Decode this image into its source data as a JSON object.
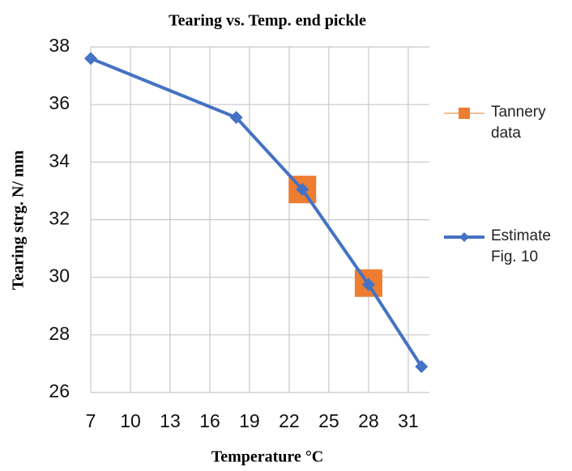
{
  "chart_data": {
    "type": "line",
    "title": "Tearing vs. Temp. end pickle",
    "xlabel": "Temperature °C",
    "ylabel": "Tearing strg. N/ mm",
    "series": [
      {
        "name": "Tannery data",
        "color": "#ED7D31",
        "marker": "square",
        "line": false,
        "x": [
          23,
          28
        ],
        "values": [
          33.05,
          29.8
        ]
      },
      {
        "name": "Estimate Fig. 10",
        "color": "#4472C4",
        "marker": "diamond",
        "line": true,
        "x": [
          7,
          18,
          23,
          28,
          32
        ],
        "values": [
          37.6,
          35.55,
          33.05,
          29.75,
          26.9
        ]
      }
    ],
    "xlim": [
      7,
      32.6
    ],
    "xticks": [
      7,
      10,
      13,
      16,
      19,
      22,
      25,
      28,
      31
    ],
    "ylim": [
      26,
      38
    ],
    "yticks": [
      26,
      28,
      30,
      32,
      34,
      36,
      38
    ],
    "grid": true,
    "legend": "right"
  }
}
